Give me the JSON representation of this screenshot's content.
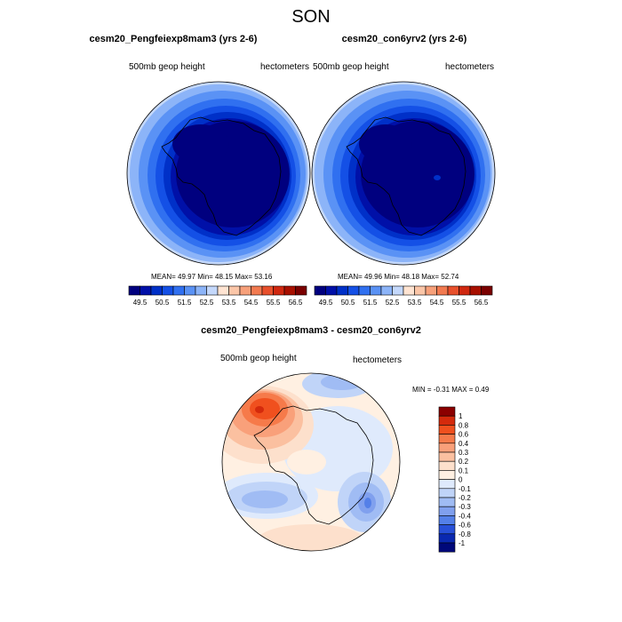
{
  "title": "SON",
  "panel_a": {
    "title": "cesm20_Pengfeiexp8mam3 (yrs 2-6)",
    "left_label": "500mb geop height",
    "right_label": "hectometers",
    "stats": "MEAN=  49.97  Min=  48.15  Max=  53.16"
  },
  "panel_b": {
    "title": "cesm20_con6yrv2 (yrs 2-6)",
    "left_label": "500mb geop height",
    "right_label": "hectometers",
    "stats": "MEAN=  49.96  Min=  48.18  Max=  52.74"
  },
  "panel_diff": {
    "title": "cesm20_Pengfeiexp8mam3 - cesm20_con6yrv2",
    "left_label": "500mb geop height",
    "right_label": "hectometers",
    "stats": "MIN =  -0.31 MAX =   0.49"
  },
  "colorbar_abs": {
    "labels": [
      "49.5",
      "50.5",
      "51.5",
      "52.5",
      "53.5",
      "54.5",
      "55.5",
      "56.5"
    ],
    "colors": [
      "#00007f",
      "#0010a8",
      "#0030c8",
      "#1450e6",
      "#3070f0",
      "#5a92f5",
      "#8cb4f8",
      "#c4d8fb",
      "#ffe4d2",
      "#fbc6a8",
      "#f7a07a",
      "#f27a50",
      "#e8502c",
      "#d02810",
      "#a81000",
      "#7a0000"
    ]
  },
  "colorbar_diff": {
    "labels": [
      "1",
      "0.8",
      "0.6",
      "0.4",
      "0.3",
      "0.2",
      "0.1",
      "0",
      "-0.1",
      "-0.2",
      "-0.3",
      "-0.4",
      "-0.6",
      "-0.8",
      "-1"
    ],
    "colors": [
      "#8b0000",
      "#d42a0c",
      "#f0501e",
      "#f67a4a",
      "#f9a07a",
      "#fbc0a0",
      "#fde0cc",
      "#fff0e2",
      "#dfeafc",
      "#c0d4f8",
      "#a0bcf4",
      "#80a0ee",
      "#5480e8",
      "#2850d8",
      "#0a28b0",
      "#00087a"
    ]
  }
}
